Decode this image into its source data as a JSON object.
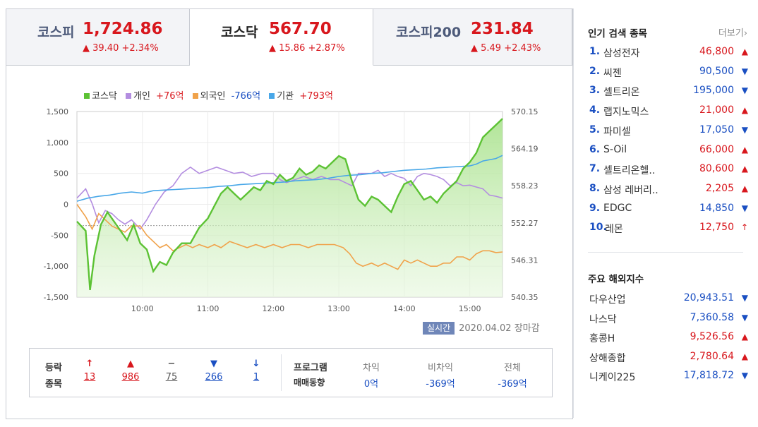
{
  "tabs": [
    {
      "name": "코스피",
      "value": "1,724.86",
      "change": "▲ 39.40 +2.34%"
    },
    {
      "name": "코스닥",
      "value": "567.70",
      "change": "▲ 15.86 +2.87%"
    },
    {
      "name": "코스피200",
      "value": "231.84",
      "change": "▲ 5.49 +2.43%"
    }
  ],
  "legend": {
    "kosdaq": "코스닥",
    "individual": "개인",
    "individual_val": "+76억",
    "foreign": "외국인",
    "foreign_val": "-766억",
    "institution": "기관",
    "institution_val": "+793억"
  },
  "colors": {
    "kosdaq": "#5cc234",
    "individual": "#b38de0",
    "foreign": "#f0a24a",
    "institution": "#48a7e8",
    "up": "#d8171d",
    "down": "#1a4fc2"
  },
  "chart_data": {
    "type": "line",
    "x_labels": [
      "10:00",
      "11:00",
      "12:00",
      "13:00",
      "14:00",
      "15:00"
    ],
    "x_minutes_from_0900": [
      60,
      120,
      180,
      240,
      300,
      360
    ],
    "x_range_minutes": [
      0,
      390
    ],
    "left_axis": {
      "ticks": [
        "1,500",
        "1,000",
        "500",
        "0",
        "-500",
        "-1,000",
        "-1,500"
      ],
      "range": [
        -1500,
        1500
      ]
    },
    "right_axis": {
      "ticks": [
        "570.15",
        "564.19",
        "558.23",
        "552.27",
        "546.31",
        "540.35"
      ],
      "range": [
        540.35,
        570.15
      ]
    },
    "baseline": 551.84,
    "series": [
      {
        "name": "코스닥",
        "axis": "right",
        "points": [
          [
            0,
            552.5
          ],
          [
            8,
            551
          ],
          [
            12,
            541.5
          ],
          [
            16,
            547
          ],
          [
            22,
            552
          ],
          [
            28,
            554
          ],
          [
            34,
            552.5
          ],
          [
            40,
            551
          ],
          [
            46,
            549.5
          ],
          [
            52,
            552
          ],
          [
            58,
            549
          ],
          [
            64,
            548
          ],
          [
            70,
            544.5
          ],
          [
            76,
            546
          ],
          [
            82,
            545.5
          ],
          [
            88,
            547.5
          ],
          [
            96,
            549
          ],
          [
            104,
            549
          ],
          [
            112,
            551.5
          ],
          [
            120,
            553
          ],
          [
            126,
            555
          ],
          [
            132,
            557
          ],
          [
            138,
            558
          ],
          [
            144,
            557
          ],
          [
            150,
            556
          ],
          [
            156,
            557
          ],
          [
            162,
            558
          ],
          [
            168,
            557.5
          ],
          [
            174,
            559
          ],
          [
            180,
            558.5
          ],
          [
            186,
            560
          ],
          [
            192,
            559
          ],
          [
            198,
            559.5
          ],
          [
            204,
            561
          ],
          [
            210,
            560
          ],
          [
            216,
            560.5
          ],
          [
            222,
            561.5
          ],
          [
            228,
            561
          ],
          [
            234,
            562
          ],
          [
            240,
            563
          ],
          [
            246,
            562.5
          ],
          [
            252,
            559
          ],
          [
            258,
            556
          ],
          [
            264,
            555
          ],
          [
            270,
            556.5
          ],
          [
            276,
            556
          ],
          [
            282,
            555
          ],
          [
            288,
            554
          ],
          [
            294,
            556.5
          ],
          [
            300,
            558.5
          ],
          [
            306,
            559
          ],
          [
            312,
            557.5
          ],
          [
            318,
            556
          ],
          [
            324,
            556.5
          ],
          [
            330,
            555.5
          ],
          [
            336,
            557
          ],
          [
            342,
            558
          ],
          [
            348,
            559
          ],
          [
            354,
            561
          ],
          [
            360,
            562
          ],
          [
            366,
            563.5
          ],
          [
            372,
            566
          ],
          [
            378,
            567
          ],
          [
            384,
            568
          ],
          [
            390,
            569
          ]
        ]
      },
      {
        "name": "개인",
        "axis": "left",
        "points": [
          [
            0,
            100
          ],
          [
            8,
            250
          ],
          [
            14,
            10
          ],
          [
            20,
            -300
          ],
          [
            26,
            -100
          ],
          [
            32,
            -150
          ],
          [
            38,
            -250
          ],
          [
            44,
            -320
          ],
          [
            50,
            -250
          ],
          [
            58,
            -400
          ],
          [
            64,
            -250
          ],
          [
            72,
            0
          ],
          [
            80,
            200
          ],
          [
            88,
            300
          ],
          [
            96,
            500
          ],
          [
            104,
            600
          ],
          [
            112,
            500
          ],
          [
            120,
            550
          ],
          [
            128,
            600
          ],
          [
            136,
            550
          ],
          [
            144,
            500
          ],
          [
            152,
            520
          ],
          [
            160,
            450
          ],
          [
            170,
            500
          ],
          [
            180,
            500
          ],
          [
            186,
            400
          ],
          [
            192,
            350
          ],
          [
            200,
            400
          ],
          [
            208,
            450
          ],
          [
            216,
            400
          ],
          [
            224,
            450
          ],
          [
            232,
            400
          ],
          [
            240,
            400
          ],
          [
            246,
            350
          ],
          [
            252,
            300
          ],
          [
            258,
            500
          ],
          [
            264,
            500
          ],
          [
            270,
            500
          ],
          [
            276,
            550
          ],
          [
            282,
            450
          ],
          [
            288,
            500
          ],
          [
            294,
            450
          ],
          [
            300,
            420
          ],
          [
            306,
            300
          ],
          [
            312,
            450
          ],
          [
            318,
            500
          ],
          [
            324,
            480
          ],
          [
            330,
            450
          ],
          [
            336,
            400
          ],
          [
            342,
            300
          ],
          [
            348,
            350
          ],
          [
            354,
            300
          ],
          [
            360,
            310
          ],
          [
            366,
            280
          ],
          [
            372,
            250
          ],
          [
            378,
            150
          ],
          [
            384,
            130
          ],
          [
            390,
            100
          ]
        ]
      },
      {
        "name": "외국인",
        "axis": "left",
        "points": [
          [
            0,
            0
          ],
          [
            8,
            -200
          ],
          [
            14,
            -400
          ],
          [
            20,
            -150
          ],
          [
            26,
            -250
          ],
          [
            32,
            -350
          ],
          [
            38,
            -400
          ],
          [
            44,
            -450
          ],
          [
            50,
            -350
          ],
          [
            58,
            -350
          ],
          [
            64,
            -500
          ],
          [
            70,
            -600
          ],
          [
            76,
            -700
          ],
          [
            82,
            -650
          ],
          [
            88,
            -750
          ],
          [
            94,
            -700
          ],
          [
            100,
            -650
          ],
          [
            106,
            -700
          ],
          [
            112,
            -650
          ],
          [
            120,
            -700
          ],
          [
            126,
            -650
          ],
          [
            132,
            -700
          ],
          [
            140,
            -600
          ],
          [
            148,
            -650
          ],
          [
            156,
            -700
          ],
          [
            164,
            -650
          ],
          [
            172,
            -700
          ],
          [
            180,
            -650
          ],
          [
            188,
            -700
          ],
          [
            196,
            -650
          ],
          [
            204,
            -650
          ],
          [
            212,
            -700
          ],
          [
            220,
            -650
          ],
          [
            228,
            -650
          ],
          [
            236,
            -650
          ],
          [
            244,
            -700
          ],
          [
            250,
            -800
          ],
          [
            256,
            -950
          ],
          [
            262,
            -1000
          ],
          [
            270,
            -950
          ],
          [
            276,
            -1000
          ],
          [
            282,
            -950
          ],
          [
            288,
            -1000
          ],
          [
            294,
            -1050
          ],
          [
            300,
            -900
          ],
          [
            306,
            -950
          ],
          [
            312,
            -900
          ],
          [
            318,
            -950
          ],
          [
            324,
            -1000
          ],
          [
            330,
            -1000
          ],
          [
            336,
            -950
          ],
          [
            342,
            -950
          ],
          [
            348,
            -850
          ],
          [
            354,
            -850
          ],
          [
            360,
            -900
          ],
          [
            366,
            -800
          ],
          [
            372,
            -750
          ],
          [
            378,
            -750
          ],
          [
            384,
            -780
          ],
          [
            390,
            -770
          ]
        ]
      },
      {
        "name": "기관",
        "axis": "left",
        "points": [
          [
            0,
            50
          ],
          [
            10,
            100
          ],
          [
            20,
            130
          ],
          [
            30,
            150
          ],
          [
            40,
            180
          ],
          [
            50,
            200
          ],
          [
            60,
            180
          ],
          [
            70,
            220
          ],
          [
            80,
            230
          ],
          [
            90,
            240
          ],
          [
            100,
            250
          ],
          [
            110,
            260
          ],
          [
            120,
            270
          ],
          [
            130,
            290
          ],
          [
            140,
            300
          ],
          [
            150,
            320
          ],
          [
            160,
            330
          ],
          [
            170,
            340
          ],
          [
            180,
            350
          ],
          [
            190,
            360
          ],
          [
            200,
            380
          ],
          [
            210,
            390
          ],
          [
            220,
            400
          ],
          [
            230,
            420
          ],
          [
            240,
            450
          ],
          [
            250,
            470
          ],
          [
            260,
            480
          ],
          [
            270,
            500
          ],
          [
            280,
            510
          ],
          [
            290,
            530
          ],
          [
            300,
            550
          ],
          [
            310,
            560
          ],
          [
            320,
            570
          ],
          [
            330,
            590
          ],
          [
            340,
            600
          ],
          [
            350,
            610
          ],
          [
            360,
            620
          ],
          [
            366,
            650
          ],
          [
            372,
            700
          ],
          [
            378,
            720
          ],
          [
            384,
            740
          ],
          [
            390,
            790
          ]
        ]
      }
    ]
  },
  "status": {
    "realtime": "실시간",
    "date": "2020.04.02 장마감"
  },
  "breadth": {
    "label1": "등락",
    "label2": "종목",
    "items": [
      {
        "arrow": "↑",
        "count": "13",
        "color": "up"
      },
      {
        "arrow": "▲",
        "count": "986",
        "color": "up"
      },
      {
        "arrow": "−",
        "count": "75",
        "color": "flat"
      },
      {
        "arrow": "▼",
        "count": "266",
        "color": "down"
      },
      {
        "arrow": "↓",
        "count": "1",
        "color": "down"
      }
    ]
  },
  "program": {
    "label1": "프로그램",
    "label2": "매매동향",
    "cols": [
      {
        "head": "차익",
        "val": "0억"
      },
      {
        "head": "비차익",
        "val": "-369억"
      },
      {
        "head": "전체",
        "val": "-369억"
      }
    ]
  },
  "popular": {
    "title": "인기 검색 종목",
    "more": "더보기",
    "items": [
      {
        "rank": "1.",
        "name": "삼성전자",
        "price": "46,800",
        "dir": "up"
      },
      {
        "rank": "2.",
        "name": "씨젠",
        "price": "90,500",
        "dir": "down"
      },
      {
        "rank": "3.",
        "name": "셀트리온",
        "price": "195,000",
        "dir": "down"
      },
      {
        "rank": "4.",
        "name": "랩지노믹스",
        "price": "21,000",
        "dir": "up"
      },
      {
        "rank": "5.",
        "name": "파미셀",
        "price": "17,050",
        "dir": "down"
      },
      {
        "rank": "6.",
        "name": "S-Oil",
        "price": "66,000",
        "dir": "up"
      },
      {
        "rank": "7.",
        "name": "셀트리온헬..",
        "price": "80,600",
        "dir": "up"
      },
      {
        "rank": "8.",
        "name": "삼성 레버리..",
        "price": "2,205",
        "dir": "up"
      },
      {
        "rank": "9.",
        "name": "EDGC",
        "price": "14,850",
        "dir": "down"
      },
      {
        "rank": "10.",
        "name": "레몬",
        "price": "12,750",
        "dir": "upper"
      }
    ]
  },
  "overseas": {
    "title": "주요 해외지수",
    "items": [
      {
        "name": "다우산업",
        "value": "20,943.51",
        "dir": "down"
      },
      {
        "name": "나스닥",
        "value": "7,360.58",
        "dir": "down"
      },
      {
        "name": "홍콩H",
        "value": "9,526.56",
        "dir": "up"
      },
      {
        "name": "상해종합",
        "value": "2,780.64",
        "dir": "up"
      },
      {
        "name": "니케이225",
        "value": "17,818.72",
        "dir": "down"
      }
    ]
  }
}
